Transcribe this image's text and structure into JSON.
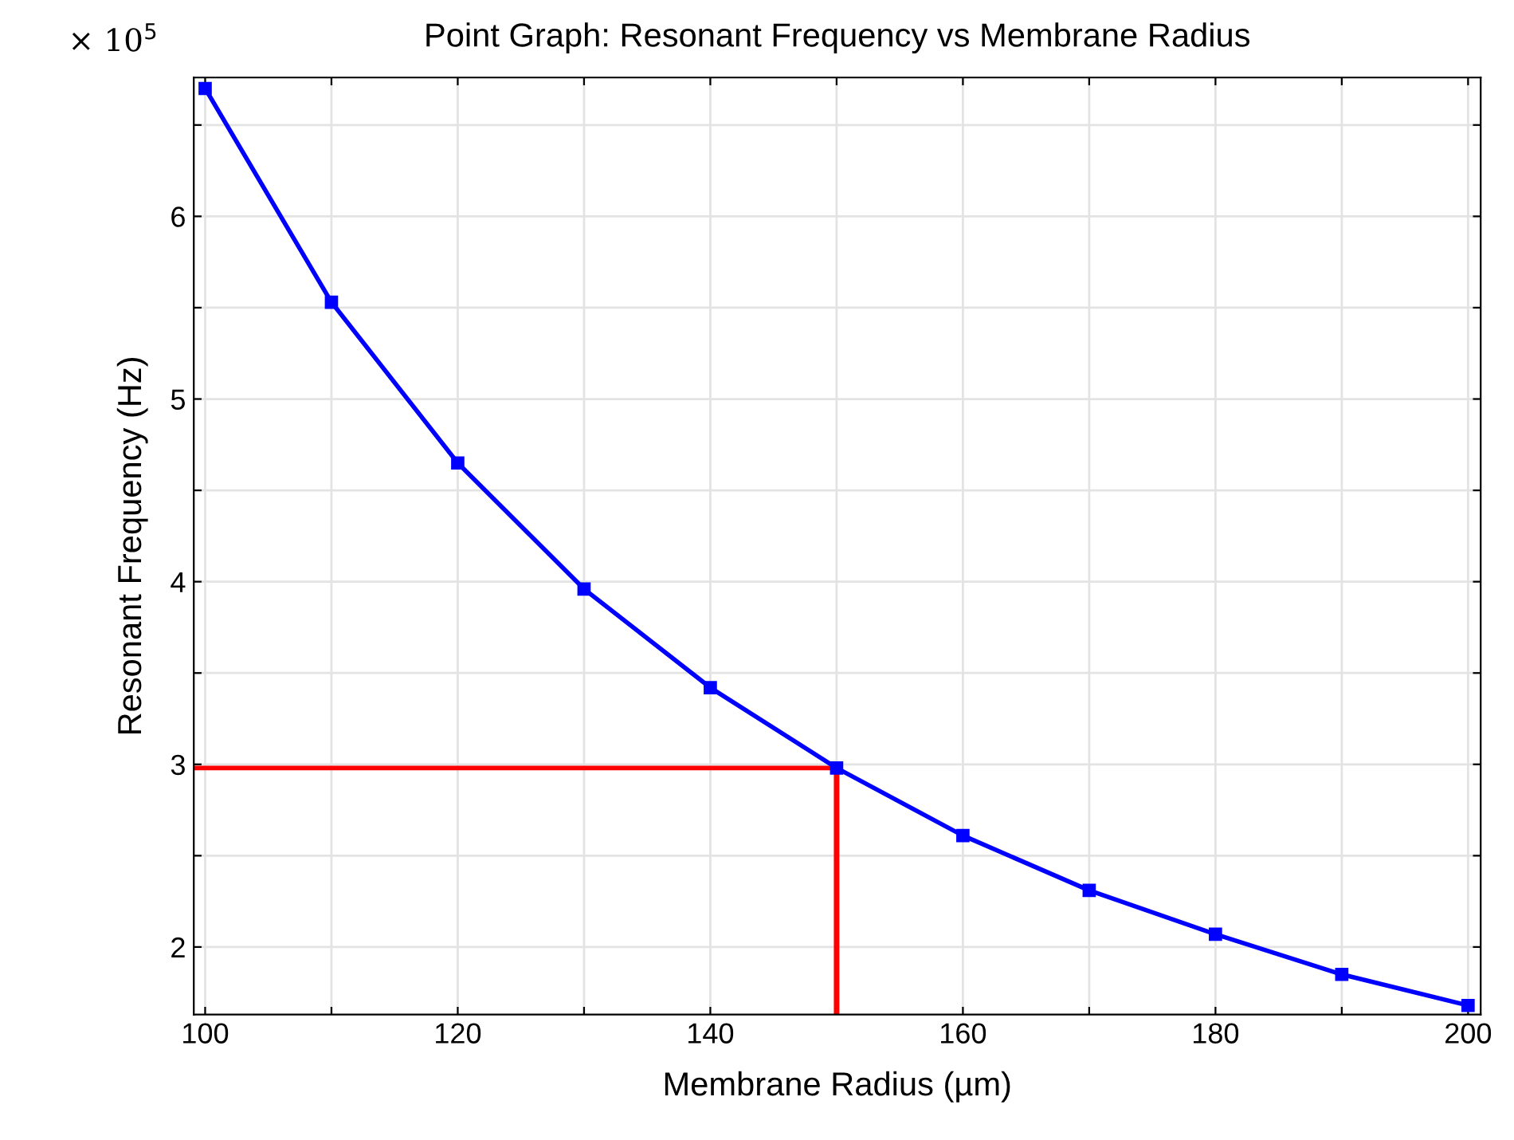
{
  "chart_data": {
    "type": "line",
    "title": "Point Graph: Resonant Frequency vs Membrane Radius",
    "xlabel": "Membrane Radius (µm)",
    "ylabel": "Resonant Frequency (Hz)",
    "annotations": [
      "× 10$^{5}$"
    ],
    "x": [
      100,
      110,
      120,
      130,
      140,
      150,
      160,
      170,
      180,
      190,
      200
    ],
    "series": [
      {
        "color": "#0000ff",
        "values": [
          6.7,
          5.53,
          4.65,
          3.96,
          3.42,
          2.98,
          2.61,
          2.31,
          2.07,
          1.85,
          1.68
        ]
      }
    ],
    "xlim": [
      99.1,
      201
    ],
    "ylim": [
      1.63,
      6.76
    ],
    "xticks": [
      100,
      {
        "value": 110,
        "label": null
      },
      120,
      {
        "value": 130,
        "label": null
      },
      140,
      {
        "value": 150,
        "label": null
      },
      160,
      {
        "value": 170,
        "label": null
      },
      180,
      {
        "value": 190,
        "label": null
      },
      200
    ],
    "yticks": [
      2,
      {
        "value": 2.5,
        "label": null
      },
      3,
      {
        "value": 3.5,
        "label": null
      },
      4,
      {
        "value": 4.5,
        "label": null
      },
      5,
      {
        "value": 5.5,
        "label": null
      },
      6,
      {
        "value": 6.5,
        "label": null
      }
    ],
    "ref_lines": [
      {
        "axis": "y",
        "value": 2.98,
        "color": "#ff0000"
      },
      {
        "axis": "x",
        "value": 150,
        "color": "#ff0000"
      }
    ],
    "grid": true,
    "marker": "square",
    "line_style": "solid"
  }
}
